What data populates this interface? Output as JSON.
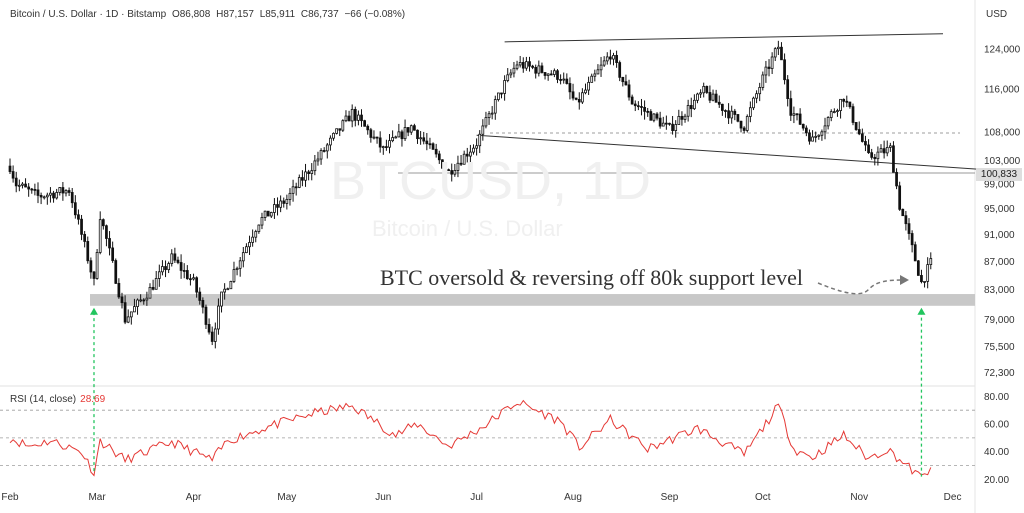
{
  "header": {
    "symbol": "Bitcoin / U.S. Dollar · 1D · Bitstamp",
    "open": "O86,808",
    "high": "H87,157",
    "low": "L85,911",
    "close": "C86,737",
    "change": "−66 (−0.08%)"
  },
  "currency": "USD",
  "watermark": {
    "ticker": "BTCUSD, 1D",
    "name": "Bitcoin / U.S. Dollar"
  },
  "annotation": "BTC oversold & reversing off 80k support level",
  "current_price_tag": "100,833",
  "rsi": {
    "label": "RSI (14, close)",
    "value": "28.69"
  },
  "colors": {
    "candle": "#111111",
    "rsi_line": "#e53935",
    "support_zone": "#c8c8c8",
    "arrow": "#22c55e",
    "grid_dash": "#9e9e9e"
  },
  "chart_data": [
    {
      "type": "candlestick",
      "title": "Bitcoin / U.S. Dollar · 1D · Bitstamp",
      "x_ticks": [
        "Feb",
        "Mar",
        "Apr",
        "May",
        "Jun",
        "Jul",
        "Aug",
        "Sep",
        "Oct",
        "Nov",
        "Dec"
      ],
      "y_ticks": [
        "72,300",
        "75,500",
        "79,000",
        "83,000",
        "87,000",
        "91,000",
        "95,000",
        "99,000",
        "103,000",
        "108,000",
        "116,000",
        "124,000"
      ],
      "ylim": [
        70800,
        128000
      ],
      "scale": "log",
      "support_zone": [
        80800,
        82400
      ],
      "horizontal_levels": [
        100833,
        107800
      ],
      "close_anchors": [
        {
          "date": "Feb 01",
          "close": 102000
        },
        {
          "date": "Feb 03",
          "close": 99000
        },
        {
          "date": "Feb 10",
          "close": 97000
        },
        {
          "date": "Feb 20",
          "close": 98000
        },
        {
          "date": "Feb 24",
          "close": 91000
        },
        {
          "date": "Feb 28",
          "close": 84000
        },
        {
          "date": "Mar 02",
          "close": 94000
        },
        {
          "date": "Mar 10",
          "close": 79000
        },
        {
          "date": "Mar 18",
          "close": 83000
        },
        {
          "date": "Mar 25",
          "close": 87500
        },
        {
          "date": "Apr 01",
          "close": 84000
        },
        {
          "date": "Apr 07",
          "close": 76500
        },
        {
          "date": "Apr 10",
          "close": 82000
        },
        {
          "date": "Apr 22",
          "close": 93000
        },
        {
          "date": "May 01",
          "close": 96500
        },
        {
          "date": "May 12",
          "close": 104000
        },
        {
          "date": "May 22",
          "close": 111500
        },
        {
          "date": "Jun 01",
          "close": 104800
        },
        {
          "date": "Jun 10",
          "close": 109000
        },
        {
          "date": "Jun 22",
          "close": 101000
        },
        {
          "date": "Jul 01",
          "close": 106000
        },
        {
          "date": "Jul 10",
          "close": 117000
        },
        {
          "date": "Jul 14",
          "close": 121000
        },
        {
          "date": "Jul 28",
          "close": 118500
        },
        {
          "date": "Aug 02",
          "close": 113000
        },
        {
          "date": "Aug 13",
          "close": 123000
        },
        {
          "date": "Aug 20",
          "close": 113500
        },
        {
          "date": "Sep 01",
          "close": 108500
        },
        {
          "date": "Sep 12",
          "close": 115500
        },
        {
          "date": "Sep 25",
          "close": 109000
        },
        {
          "date": "Oct 01",
          "close": 118000
        },
        {
          "date": "Oct 06",
          "close": 124500
        },
        {
          "date": "Oct 10",
          "close": 112000
        },
        {
          "date": "Oct 17",
          "close": 106500
        },
        {
          "date": "Oct 27",
          "close": 114500
        },
        {
          "date": "Nov 04",
          "close": 103500
        },
        {
          "date": "Nov 11",
          "close": 105000
        },
        {
          "date": "Nov 14",
          "close": 95500
        },
        {
          "date": "Nov 21",
          "close": 84000
        },
        {
          "date": "Nov 24",
          "close": 86737
        }
      ]
    },
    {
      "type": "line",
      "title": "RSI (14, close)",
      "y_ticks": [
        "20.00",
        "40.00",
        "60.00",
        "80.00"
      ],
      "ylim": [
        16,
        86
      ],
      "levels": [
        30,
        50,
        70
      ],
      "last": 28.69,
      "anchors": [
        {
          "date": "Feb 01",
          "value": 50
        },
        {
          "date": "Feb 07",
          "value": 44
        },
        {
          "date": "Feb 14",
          "value": 48
        },
        {
          "date": "Feb 24",
          "value": 40
        },
        {
          "date": "Feb 28",
          "value": 25
        },
        {
          "date": "Mar 02",
          "value": 48
        },
        {
          "date": "Mar 10",
          "value": 34
        },
        {
          "date": "Mar 25",
          "value": 47
        },
        {
          "date": "Apr 07",
          "value": 34
        },
        {
          "date": "Apr 12",
          "value": 48
        },
        {
          "date": "Apr 25",
          "value": 58
        },
        {
          "date": "May 10",
          "value": 68
        },
        {
          "date": "May 22",
          "value": 73
        },
        {
          "date": "Jun 05",
          "value": 52
        },
        {
          "date": "Jun 12",
          "value": 60
        },
        {
          "date": "Jun 22",
          "value": 44
        },
        {
          "date": "Jul 03",
          "value": 58
        },
        {
          "date": "Jul 14",
          "value": 76
        },
        {
          "date": "Jul 28",
          "value": 62
        },
        {
          "date": "Aug 03",
          "value": 43
        },
        {
          "date": "Aug 13",
          "value": 63
        },
        {
          "date": "Aug 25",
          "value": 42
        },
        {
          "date": "Sep 10",
          "value": 57
        },
        {
          "date": "Sep 25",
          "value": 38
        },
        {
          "date": "Oct 06",
          "value": 73
        },
        {
          "date": "Oct 11",
          "value": 42
        },
        {
          "date": "Oct 17",
          "value": 36
        },
        {
          "date": "Oct 27",
          "value": 52
        },
        {
          "date": "Nov 04",
          "value": 35
        },
        {
          "date": "Nov 10",
          "value": 42
        },
        {
          "date": "Nov 21",
          "value": 21
        },
        {
          "date": "Nov 24",
          "value": 28.69
        }
      ]
    }
  ]
}
